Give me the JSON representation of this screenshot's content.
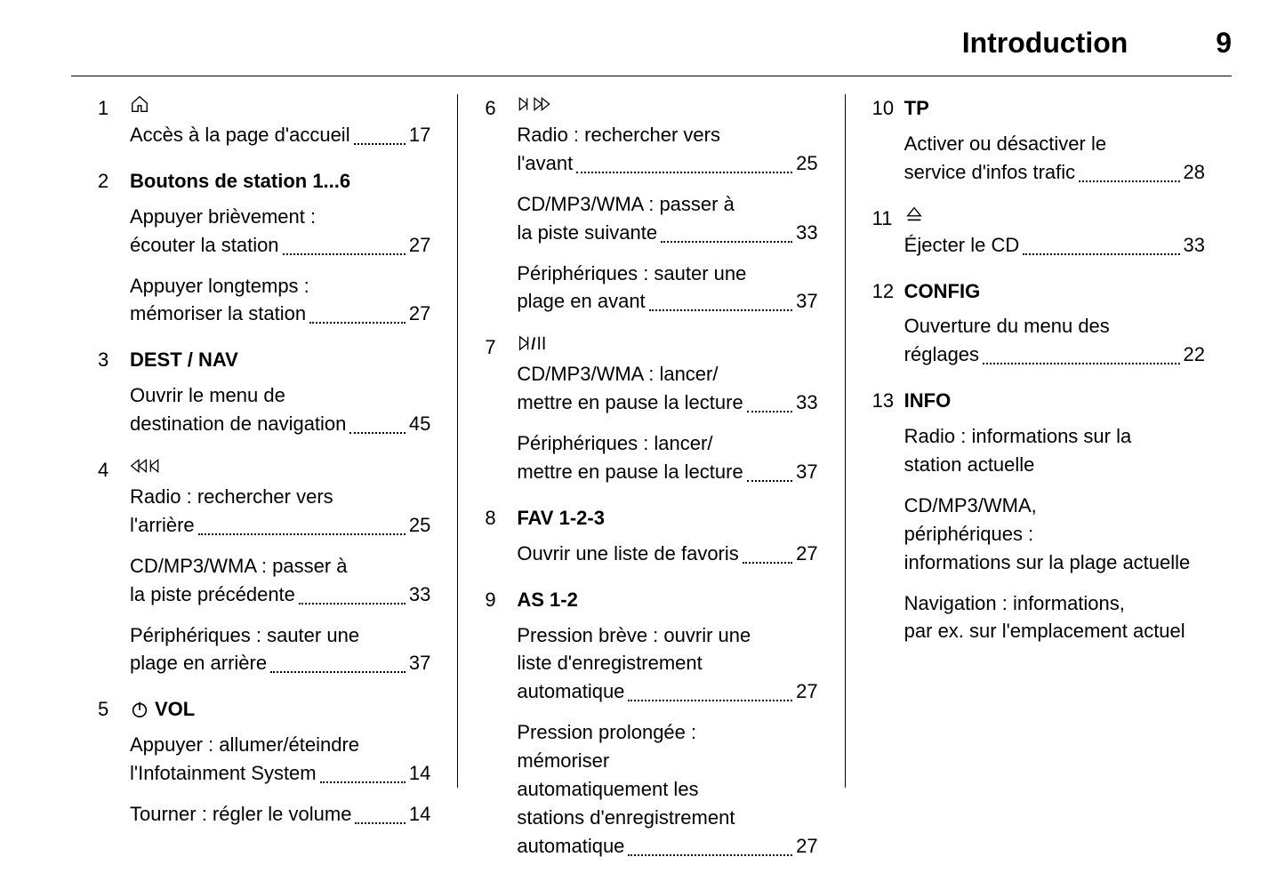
{
  "header": {
    "title": "Introduction",
    "page_number": "9"
  },
  "columns": [
    [
      {
        "num": "1",
        "heading_icon": "home",
        "heading_text": "",
        "descs": [
          {
            "lines": [
              "Accès à la page d'accueil"
            ],
            "page": "17"
          }
        ]
      },
      {
        "num": "2",
        "heading_text": "Boutons de station 1...6",
        "descs": [
          {
            "lines": [
              "Appuyer brièvement :",
              "écouter la station"
            ],
            "page": "27"
          },
          {
            "lines": [
              "Appuyer longtemps :",
              "mémoriser la station"
            ],
            "page": "27"
          }
        ]
      },
      {
        "num": "3",
        "heading_text": "DEST / NAV",
        "descs": [
          {
            "lines": [
              "Ouvrir le menu de",
              "destination de navigation"
            ],
            "page": "45"
          }
        ]
      },
      {
        "num": "4",
        "heading_icon": "rewind-prev",
        "heading_text": "",
        "descs": [
          {
            "lines": [
              "Radio : rechercher vers",
              "l'arrière"
            ],
            "page": "25"
          },
          {
            "lines": [
              "CD/MP3/WMA : passer à",
              "la piste précédente"
            ],
            "page": "33"
          },
          {
            "lines": [
              "Périphériques : sauter une",
              "plage en arrière"
            ],
            "page": "37"
          }
        ]
      },
      {
        "num": "5",
        "heading_icon": "power",
        "heading_text": "VOL",
        "descs": [
          {
            "lines": [
              "Appuyer : allumer/éteindre",
              "l'Infotainment System"
            ],
            "page": "14"
          },
          {
            "lines": [
              "Tourner : régler le volume"
            ],
            "page": "14"
          }
        ]
      }
    ],
    [
      {
        "num": "6",
        "heading_icon": "next-fwd",
        "heading_text": "",
        "descs": [
          {
            "lines": [
              "Radio : rechercher vers",
              "l'avant"
            ],
            "page": "25"
          },
          {
            "lines": [
              "CD/MP3/WMA : passer à",
              "la piste suivante"
            ],
            "page": "33"
          },
          {
            "lines": [
              "Périphériques : sauter une",
              "plage en avant"
            ],
            "page": "37"
          }
        ]
      },
      {
        "num": "7",
        "heading_icon": "play-pause-skip",
        "heading_text": "",
        "descs": [
          {
            "lines": [
              "CD/MP3/WMA : lancer/",
              "mettre en pause la lecture"
            ],
            "page": "33"
          },
          {
            "lines": [
              "Périphériques : lancer/",
              "mettre en pause la lecture"
            ],
            "page": "37"
          }
        ]
      },
      {
        "num": "8",
        "heading_text": "FAV 1-2-3",
        "descs": [
          {
            "lines": [
              "Ouvrir une liste de favoris"
            ],
            "page": "27"
          }
        ]
      },
      {
        "num": "9",
        "heading_text": "AS 1-2",
        "descs": [
          {
            "lines": [
              "Pression brève : ouvrir une",
              "liste d'enregistrement",
              "automatique"
            ],
            "page": "27"
          },
          {
            "lines": [
              "Pression prolongée :",
              "mémoriser",
              "automatiquement les",
              "stations d'enregistrement",
              "automatique"
            ],
            "page": "27"
          }
        ]
      }
    ],
    [
      {
        "num": "10",
        "heading_text": "TP",
        "descs": [
          {
            "lines": [
              "Activer ou désactiver le",
              "service d'infos trafic"
            ],
            "page": "28"
          }
        ]
      },
      {
        "num": "11",
        "heading_icon": "eject",
        "heading_text": "",
        "descs": [
          {
            "lines": [
              "Éjecter le CD"
            ],
            "page": "33"
          }
        ]
      },
      {
        "num": "12",
        "heading_text": "CONFIG",
        "descs": [
          {
            "lines": [
              "Ouverture du menu des",
              "réglages"
            ],
            "page": "22"
          }
        ]
      },
      {
        "num": "13",
        "heading_text": "INFO",
        "descs": [
          {
            "lines": [
              "Radio : informations sur la",
              "station actuelle"
            ],
            "page": ""
          },
          {
            "lines": [
              "CD/MP3/WMA,",
              "périphériques :",
              "informations sur la plage actuelle"
            ],
            "page": ""
          },
          {
            "lines": [
              "Navigation : informations,",
              "par ex. sur l'emplacement actuel"
            ],
            "page": ""
          }
        ]
      }
    ]
  ],
  "icons": {
    "home": "home-icon",
    "rewind-prev": "rewind-prev-icon",
    "power": "power-icon",
    "next-fwd": "next-fwd-icon",
    "play-pause-skip": "play-pause-skip-icon",
    "eject": "eject-icon"
  }
}
